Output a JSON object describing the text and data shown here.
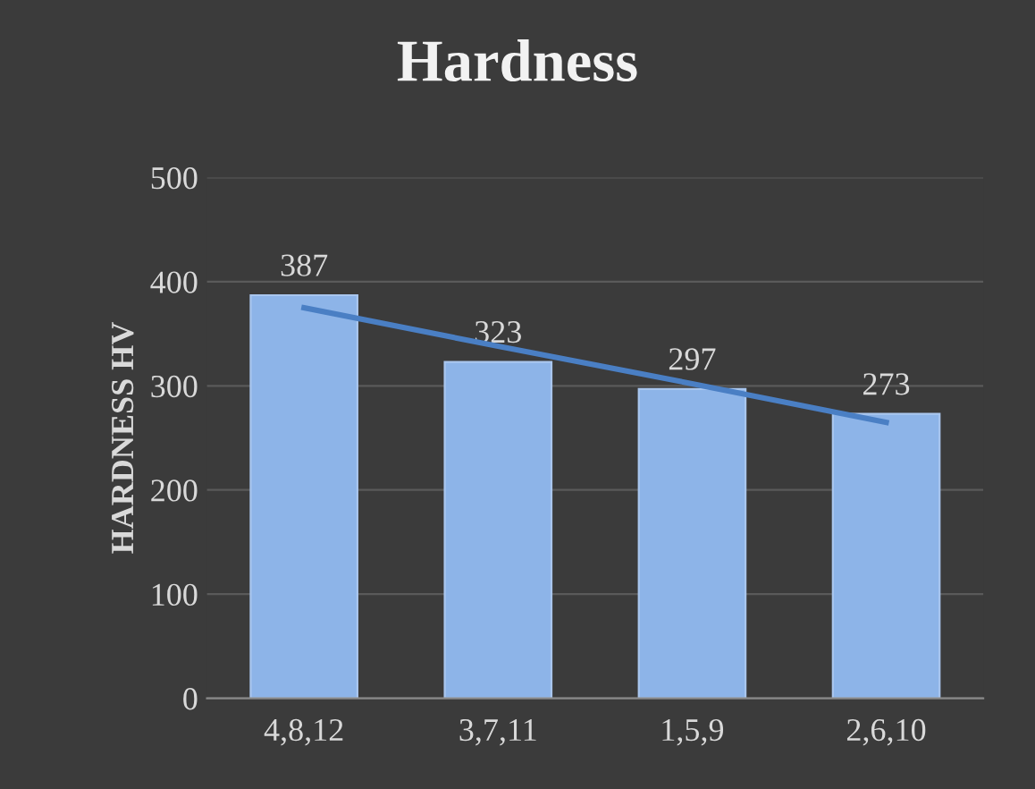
{
  "chart_data": {
    "type": "bar",
    "title": "Hardness",
    "ylabel": "HARDNESS HV",
    "categories": [
      "4,8,12",
      "3,7,11",
      "1,5,9",
      "2,6,10"
    ],
    "series": [
      {
        "color": "#8db4e8",
        "values": [
          387,
          323,
          297,
          273
        ],
        "value_labels": [
          "387",
          "323",
          "297",
          "273"
        ]
      },
      {
        "type": "line",
        "color": "#4a7fc4",
        "values": [
          375,
          338,
          302,
          265
        ]
      }
    ],
    "ylim": [
      0,
      500
    ],
    "yticks": [
      0,
      100,
      200,
      300,
      400,
      500
    ],
    "grid": "y",
    "marker": "none",
    "line_style": "solid"
  }
}
